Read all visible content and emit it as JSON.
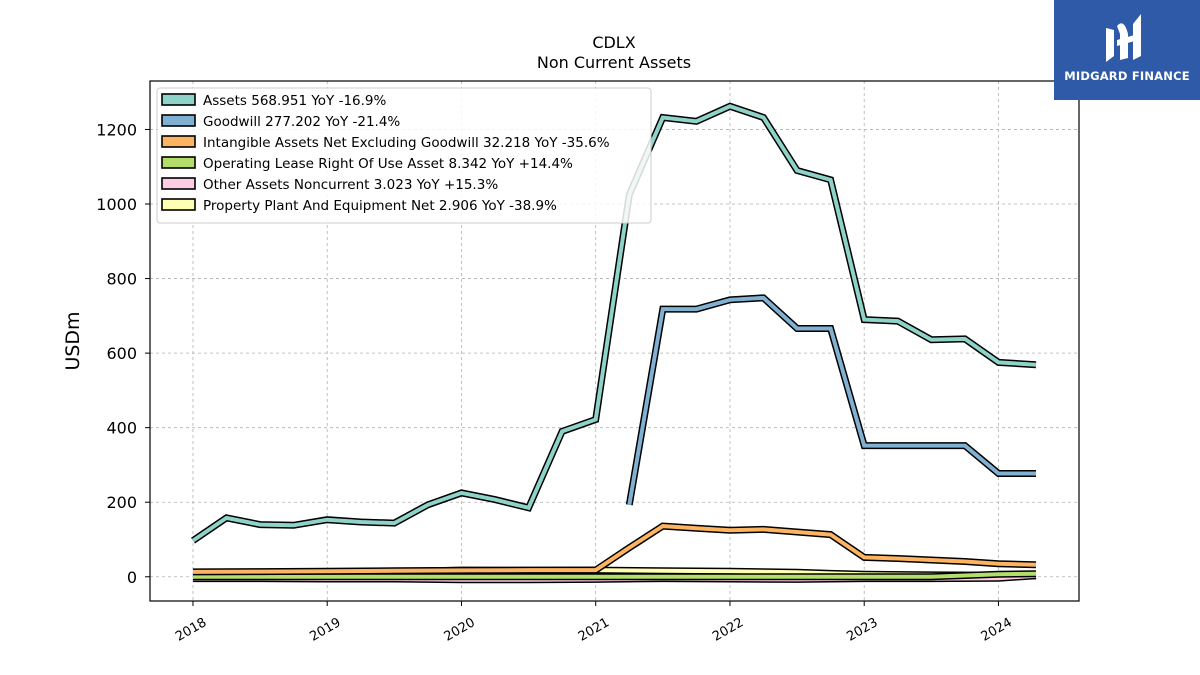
{
  "logo": {
    "text": "MIDGARD FINANCE",
    "icon": "midgard-logo-icon",
    "color": "#2f5aa8"
  },
  "chart_data": {
    "type": "line",
    "title": "CDLX",
    "subtitle": "Non Current  Assets",
    "xlabel": "",
    "ylabel": "USDm",
    "ylim": [
      -65,
      1330
    ],
    "xlim": [
      2017.68,
      2024.6
    ],
    "yticks": [
      0,
      200,
      400,
      600,
      800,
      1000,
      1200
    ],
    "xticks": [
      2018,
      2019,
      2020,
      2021,
      2022,
      2023,
      2024
    ],
    "xtick_labels": [
      "2018",
      "2019",
      "2020",
      "2021",
      "2022",
      "2023",
      "2024"
    ],
    "grid": true,
    "legend_position": "top-left",
    "series": [
      {
        "name": "Assets  568.951 YoY -16.9%",
        "color": "#8dd3c7",
        "points": [
          [
            2018.0,
            97
          ],
          [
            2018.25,
            158
          ],
          [
            2018.5,
            140
          ],
          [
            2018.75,
            138
          ],
          [
            2019.0,
            153
          ],
          [
            2019.25,
            147
          ],
          [
            2019.5,
            144
          ],
          [
            2019.75,
            193
          ],
          [
            2020.0,
            225
          ],
          [
            2020.25,
            207
          ],
          [
            2020.5,
            185
          ],
          [
            2020.75,
            390
          ],
          [
            2021.0,
            422
          ],
          [
            2021.25,
            1025
          ],
          [
            2021.5,
            1232
          ],
          [
            2021.75,
            1222
          ],
          [
            2022.0,
            1262
          ],
          [
            2022.25,
            1232
          ],
          [
            2022.5,
            1090
          ],
          [
            2022.75,
            1065
          ],
          [
            2023.0,
            690
          ],
          [
            2023.25,
            686
          ],
          [
            2023.5,
            636
          ],
          [
            2023.75,
            638
          ],
          [
            2024.0,
            575
          ],
          [
            2024.28,
            569
          ]
        ]
      },
      {
        "name": "Goodwill  277.202 YoY -21.4%",
        "color": "#80b1d3",
        "points": [
          [
            2021.25,
            193
          ],
          [
            2021.5,
            718
          ],
          [
            2021.75,
            718
          ],
          [
            2022.0,
            743
          ],
          [
            2022.25,
            748
          ],
          [
            2022.5,
            666
          ],
          [
            2022.75,
            666
          ],
          [
            2023.0,
            352
          ],
          [
            2023.25,
            352
          ],
          [
            2023.5,
            352
          ],
          [
            2023.75,
            352
          ],
          [
            2024.0,
            277
          ],
          [
            2024.28,
            277
          ]
        ]
      },
      {
        "name": "Intangible Assets Net Excluding Goodwill  32.218 YoY -35.6%",
        "color": "#fdb462",
        "points": [
          [
            2018.0,
            13
          ],
          [
            2018.5,
            14
          ],
          [
            2019.0,
            15
          ],
          [
            2019.5,
            16
          ],
          [
            2020.0,
            17
          ],
          [
            2020.5,
            18
          ],
          [
            2021.0,
            18
          ],
          [
            2021.25,
            78
          ],
          [
            2021.5,
            136
          ],
          [
            2021.75,
            130
          ],
          [
            2022.0,
            125
          ],
          [
            2022.25,
            127
          ],
          [
            2022.5,
            120
          ],
          [
            2022.75,
            113
          ],
          [
            2023.0,
            52
          ],
          [
            2023.25,
            49
          ],
          [
            2023.5,
            45
          ],
          [
            2023.75,
            41
          ],
          [
            2024.0,
            35
          ],
          [
            2024.28,
            32
          ]
        ]
      },
      {
        "name": "Operating Lease Right Of Use Asset  8.342 YoY +14.4%",
        "color": "#b3de69",
        "points": [
          [
            2018.0,
            0
          ],
          [
            2018.5,
            0
          ],
          [
            2019.0,
            0
          ],
          [
            2019.5,
            0
          ],
          [
            2020.0,
            0
          ],
          [
            2020.5,
            0
          ],
          [
            2021.0,
            0
          ],
          [
            2021.5,
            0
          ],
          [
            2022.0,
            0
          ],
          [
            2022.5,
            0
          ],
          [
            2023.0,
            0
          ],
          [
            2023.5,
            0
          ],
          [
            2024.0,
            7
          ],
          [
            2024.28,
            8
          ]
        ]
      },
      {
        "name": "Other Assets Noncurrent  3.023 YoY +15.3%",
        "color": "#fccde5",
        "points": [
          [
            2018.0,
            -5
          ],
          [
            2018.5,
            -5
          ],
          [
            2019.0,
            -6
          ],
          [
            2019.5,
            -6
          ],
          [
            2020.0,
            -8
          ],
          [
            2020.5,
            -8
          ],
          [
            2021.0,
            -7
          ],
          [
            2021.5,
            -5
          ],
          [
            2022.0,
            -6
          ],
          [
            2022.5,
            -7
          ],
          [
            2023.0,
            -5
          ],
          [
            2023.5,
            -5
          ],
          [
            2024.0,
            -4
          ],
          [
            2024.28,
            3
          ]
        ]
      },
      {
        "name": "Property Plant And Equipment Net  2.906 YoY -38.9%",
        "color": "#ffffb3",
        "points": [
          [
            2018.0,
            8
          ],
          [
            2018.5,
            9
          ],
          [
            2019.0,
            12
          ],
          [
            2019.5,
            14
          ],
          [
            2020.0,
            18
          ],
          [
            2020.5,
            17
          ],
          [
            2021.0,
            18
          ],
          [
            2021.5,
            16
          ],
          [
            2022.0,
            15
          ],
          [
            2022.5,
            12
          ],
          [
            2022.75,
            9
          ],
          [
            2023.0,
            7
          ],
          [
            2023.5,
            5
          ],
          [
            2024.0,
            4
          ],
          [
            2024.28,
            3
          ]
        ]
      }
    ]
  }
}
